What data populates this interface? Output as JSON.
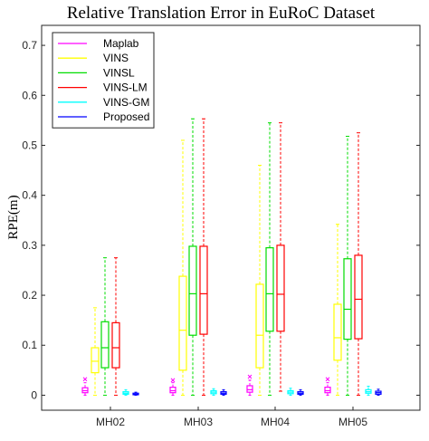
{
  "chart_data": {
    "type": "box",
    "title": "Relative Translation Error in EuRoC Dataset",
    "xlabel": "",
    "ylabel": "RPE(m)",
    "ylim": [
      -0.03,
      0.74
    ],
    "yticks": [
      0,
      0.1,
      0.2,
      0.3,
      0.4,
      0.5,
      0.6,
      0.7
    ],
    "ytick_labels": [
      "0",
      "0.1",
      "0.2",
      "0.3",
      "0.4",
      "0.5",
      "0.6",
      "0.7"
    ],
    "grid": false,
    "legend_position": "top-left",
    "categories": [
      "MH02",
      "MH03",
      "MH04",
      "MH05"
    ],
    "series": [
      {
        "name": "Maplab",
        "color": "#ff00ff",
        "boxes": [
          {
            "whisker_low": 0.0,
            "q1": 0.005,
            "median": 0.009,
            "q3": 0.015,
            "whisker_high": 0.025,
            "outliers": [
              0.032
            ]
          },
          {
            "whisker_low": 0.0,
            "q1": 0.005,
            "median": 0.009,
            "q3": 0.016,
            "whisker_high": 0.025,
            "outliers": [
              0.03
            ]
          },
          {
            "whisker_low": 0.0,
            "q1": 0.006,
            "median": 0.011,
            "q3": 0.019,
            "whisker_high": 0.03,
            "outliers": [
              0.037
            ]
          },
          {
            "whisker_low": 0.0,
            "q1": 0.005,
            "median": 0.009,
            "q3": 0.016,
            "whisker_high": 0.025,
            "outliers": [
              0.032
            ]
          }
        ]
      },
      {
        "name": "VINS",
        "color": "#ffff00",
        "boxes": [
          {
            "whisker_low": 0.0,
            "q1": 0.045,
            "median": 0.068,
            "q3": 0.095,
            "whisker_high": 0.175,
            "outliers": []
          },
          {
            "whisker_low": 0.0,
            "q1": 0.05,
            "median": 0.13,
            "q3": 0.238,
            "whisker_high": 0.51,
            "outliers": []
          },
          {
            "whisker_low": 0.0,
            "q1": 0.055,
            "median": 0.12,
            "q3": 0.222,
            "whisker_high": 0.46,
            "outliers": []
          },
          {
            "whisker_low": 0.0,
            "q1": 0.07,
            "median": 0.115,
            "q3": 0.182,
            "whisker_high": 0.342,
            "outliers": []
          }
        ]
      },
      {
        "name": "VINSL",
        "color": "#00dd00",
        "boxes": [
          {
            "whisker_low": 0.0,
            "q1": 0.055,
            "median": 0.095,
            "q3": 0.147,
            "whisker_high": 0.275,
            "outliers": []
          },
          {
            "whisker_low": 0.0,
            "q1": 0.12,
            "median": 0.203,
            "q3": 0.298,
            "whisker_high": 0.553,
            "outliers": []
          },
          {
            "whisker_low": 0.0,
            "q1": 0.128,
            "median": 0.203,
            "q3": 0.295,
            "whisker_high": 0.545,
            "outliers": []
          },
          {
            "whisker_low": 0.0,
            "q1": 0.112,
            "median": 0.172,
            "q3": 0.273,
            "whisker_high": 0.518,
            "outliers": []
          }
        ]
      },
      {
        "name": "VINS-LM",
        "color": "#ff0000",
        "boxes": [
          {
            "whisker_low": 0.0,
            "q1": 0.055,
            "median": 0.095,
            "q3": 0.145,
            "whisker_high": 0.275,
            "outliers": []
          },
          {
            "whisker_low": 0.0,
            "q1": 0.122,
            "median": 0.203,
            "q3": 0.298,
            "whisker_high": 0.553,
            "outliers": []
          },
          {
            "whisker_low": 0.008,
            "q1": 0.128,
            "median": 0.202,
            "q3": 0.3,
            "whisker_high": 0.545,
            "outliers": []
          },
          {
            "whisker_low": 0.0,
            "q1": 0.113,
            "median": 0.192,
            "q3": 0.28,
            "whisker_high": 0.525,
            "outliers": []
          }
        ]
      },
      {
        "name": "VINS-GM",
        "color": "#00ffff",
        "boxes": [
          {
            "whisker_low": 0.0,
            "q1": 0.002,
            "median": 0.004,
            "q3": 0.007,
            "whisker_high": 0.011,
            "outliers": []
          },
          {
            "whisker_low": 0.0,
            "q1": 0.003,
            "median": 0.006,
            "q3": 0.009,
            "whisker_high": 0.013,
            "outliers": []
          },
          {
            "whisker_low": 0.0,
            "q1": 0.003,
            "median": 0.006,
            "q3": 0.009,
            "whisker_high": 0.014,
            "outliers": []
          },
          {
            "whisker_low": 0.0,
            "q1": 0.004,
            "median": 0.007,
            "q3": 0.011,
            "whisker_high": 0.018,
            "outliers": []
          }
        ]
      },
      {
        "name": "Proposed",
        "color": "#0000ff",
        "boxes": [
          {
            "whisker_low": 0.0,
            "q1": 0.001,
            "median": 0.002,
            "q3": 0.004,
            "whisker_high": 0.006,
            "outliers": []
          },
          {
            "whisker_low": 0.0,
            "q1": 0.002,
            "median": 0.004,
            "q3": 0.007,
            "whisker_high": 0.011,
            "outliers": []
          },
          {
            "whisker_low": 0.0,
            "q1": 0.002,
            "median": 0.004,
            "q3": 0.007,
            "whisker_high": 0.011,
            "outliers": []
          },
          {
            "whisker_low": 0.0,
            "q1": 0.002,
            "median": 0.005,
            "q3": 0.008,
            "whisker_high": 0.012,
            "outliers": []
          }
        ]
      }
    ]
  }
}
